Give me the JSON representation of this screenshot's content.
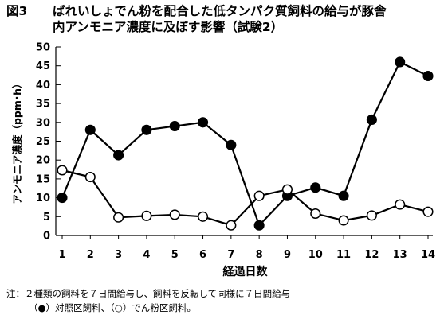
{
  "figure": {
    "number": "図3",
    "title_line1": "ばれいしょでん粉を配合した低タンパク質飼料の給与が豚舎",
    "title_line2": "内アンモニア濃度に及ぼす影響（試験2）"
  },
  "note": {
    "line1": "注：２種類の飼料を７日間給与し、飼料を反転して同様に７日間給与",
    "line2": "（●）対照区飼料、（○）でん粉区飼料。"
  },
  "chart_data": {
    "type": "line",
    "xlabel": "経過日数",
    "ylabel": "アンモニア濃度（ppm･h）",
    "x": [
      1,
      2,
      3,
      4,
      5,
      6,
      7,
      8,
      9,
      10,
      11,
      12,
      13,
      14
    ],
    "xlim": [
      1,
      14
    ],
    "ylim": [
      0,
      50
    ],
    "yticks": [
      0,
      5,
      10,
      15,
      20,
      25,
      30,
      35,
      40,
      45,
      50
    ],
    "grid": false,
    "series": [
      {
        "name": "対照区飼料",
        "marker": "filled-circle",
        "color": "#000000",
        "values": [
          10,
          28,
          21.3,
          28,
          29,
          30,
          24,
          2.7,
          10.5,
          12.7,
          10.5,
          30.7,
          46,
          42.3
        ]
      },
      {
        "name": "でん粉区飼料",
        "marker": "open-circle",
        "color": "#000000",
        "values": [
          17.3,
          15.5,
          4.8,
          5.2,
          5.5,
          5,
          2.7,
          10.5,
          12.2,
          5.8,
          4,
          5.3,
          8.2,
          6.3
        ]
      }
    ]
  }
}
